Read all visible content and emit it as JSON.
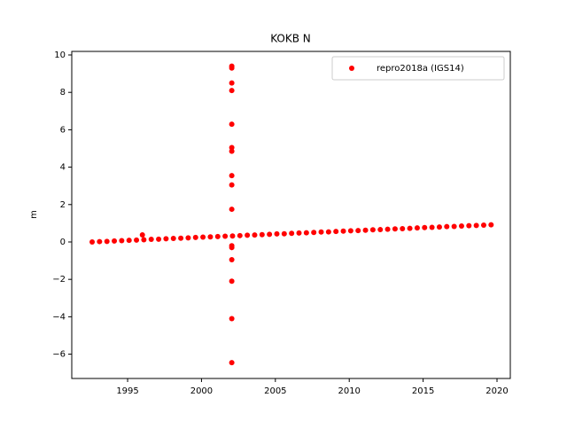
{
  "chart_data": {
    "type": "scatter",
    "title": "KOKB N",
    "y_label": "m",
    "series": [
      {
        "name": "repro2018a (IGS14)",
        "color": "#ff0000",
        "x": [
          1992.6,
          1993.1,
          1993.6,
          1994.1,
          1994.6,
          1995.1,
          1995.6,
          1996.1,
          1996.6,
          1997.1,
          1997.6,
          1998.1,
          1998.6,
          1999.1,
          1999.6,
          2000.1,
          2000.6,
          2001.1,
          2001.6,
          2002.1,
          2002.6,
          2003.1,
          2003.6,
          2004.1,
          2004.6,
          2005.1,
          2005.6,
          2006.1,
          2006.6,
          2007.1,
          2007.6,
          2008.1,
          2008.6,
          2009.1,
          2009.6,
          2010.1,
          2010.6,
          2011.1,
          2011.6,
          2012.1,
          2012.6,
          2013.1,
          2013.6,
          2014.1,
          2014.6,
          2015.1,
          2015.6,
          2016.1,
          2016.6,
          2017.1,
          2017.6,
          2018.1,
          2018.6,
          2019.1,
          2019.6,
          1996.0,
          2002.05,
          2002.05,
          2002.05,
          2002.05,
          2002.05,
          2002.05,
          2002.05,
          2002.05,
          2002.05,
          2002.05,
          2002.05,
          2002.05,
          2002.05,
          2002.05,
          2002.05,
          2002.05
        ],
        "values": [
          0,
          0.02,
          0.03,
          0.05,
          0.07,
          0.09,
          0.1,
          0.12,
          0.14,
          0.15,
          0.17,
          0.19,
          0.2,
          0.22,
          0.24,
          0.26,
          0.27,
          0.29,
          0.31,
          0.32,
          0.34,
          0.36,
          0.37,
          0.39,
          0.41,
          0.43,
          0.44,
          0.46,
          0.48,
          0.49,
          0.51,
          0.53,
          0.54,
          0.56,
          0.58,
          0.6,
          0.61,
          0.63,
          0.65,
          0.66,
          0.68,
          0.7,
          0.71,
          0.73,
          0.75,
          0.77,
          0.78,
          0.8,
          0.82,
          0.83,
          0.85,
          0.87,
          0.88,
          0.9,
          0.92,
          0.38,
          9.4,
          9.3,
          8.5,
          8.1,
          6.3,
          5.05,
          4.85,
          3.55,
          3.05,
          1.75,
          -0.2,
          -0.3,
          -0.95,
          -2.1,
          -4.1,
          -6.45
        ]
      }
    ],
    "xlim": [
      1991.22,
      2020.9
    ],
    "xticks": [
      1995,
      2000,
      2005,
      2010,
      2015,
      2020
    ],
    "ylim": [
      -7.3,
      10.19
    ],
    "yticks": [
      {
        "value": -6,
        "label": "−6"
      },
      {
        "value": -4,
        "label": "−4"
      },
      {
        "value": -2,
        "label": "−2"
      },
      0,
      2,
      4,
      6,
      8,
      10
    ],
    "legend": "upper right"
  }
}
